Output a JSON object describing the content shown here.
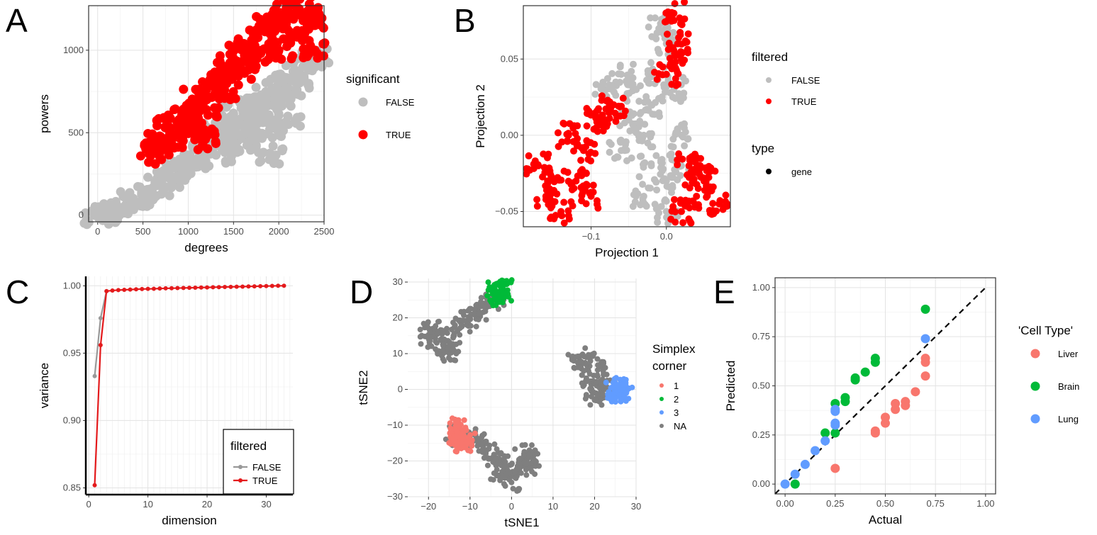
{
  "chart_data": [
    {
      "panel": "A",
      "type": "scatter",
      "xlabel": "degrees",
      "ylabel": "powers",
      "xlim": [
        -100,
        2500
      ],
      "ylim": [
        -40,
        1270
      ],
      "xticks": [
        "0",
        "500",
        "1000",
        "1500",
        "2000",
        "2500"
      ],
      "yticks": [
        "0",
        "500",
        "1000"
      ],
      "legend": {
        "title": "significant",
        "position": "right",
        "entries": [
          "FALSE",
          "TRUE"
        ]
      },
      "colors": {
        "FALSE": "#bebebe",
        "TRUE": "#ff0000"
      },
      "series": [
        {
          "name": "FALSE",
          "points": [
            [
              0,
              0
            ],
            [
              100,
              10
            ],
            [
              200,
              25
            ],
            [
              300,
              50
            ],
            [
              400,
              80
            ],
            [
              500,
              110
            ],
            [
              600,
              150
            ],
            [
              700,
              180
            ],
            [
              800,
              220
            ],
            [
              900,
              260
            ],
            [
              1000,
              300
            ],
            [
              1100,
              340
            ],
            [
              1200,
              380
            ],
            [
              1300,
              420
            ],
            [
              1400,
              480
            ],
            [
              1500,
              530
            ],
            [
              1600,
              570
            ],
            [
              1700,
              620
            ],
            [
              1800,
              660
            ],
            [
              1900,
              720
            ],
            [
              2000,
              760
            ],
            [
              2100,
              800
            ],
            [
              2200,
              860
            ],
            [
              2300,
              900
            ],
            [
              2400,
              960
            ],
            [
              1500,
              380
            ],
            [
              1700,
              440
            ],
            [
              1900,
              520
            ],
            [
              2100,
              600
            ],
            [
              1900,
              375
            ],
            [
              1300,
              560
            ],
            [
              1500,
              610
            ],
            [
              1700,
              660
            ],
            [
              2000,
              700
            ],
            [
              2200,
              760
            ]
          ]
        },
        {
          "name": "TRUE",
          "points": [
            [
              570,
              370
            ],
            [
              650,
              420
            ],
            [
              700,
              460
            ],
            [
              800,
              530
            ],
            [
              900,
              580
            ],
            [
              1000,
              640
            ],
            [
              1100,
              700
            ],
            [
              1200,
              760
            ],
            [
              1300,
              820
            ],
            [
              1400,
              880
            ],
            [
              1500,
              940
            ],
            [
              1600,
              1000
            ],
            [
              1700,
              1060
            ],
            [
              1800,
              1120
            ],
            [
              1900,
              1170
            ],
            [
              2000,
              1220
            ],
            [
              2100,
              1250
            ],
            [
              2200,
              1260
            ],
            [
              2300,
              1230
            ],
            [
              2400,
              1150
            ],
            [
              2400,
              1000
            ],
            [
              2200,
              1080
            ],
            [
              2000,
              1000
            ],
            [
              1800,
              980
            ],
            [
              1600,
              880
            ],
            [
              1400,
              760
            ],
            [
              1200,
              640
            ],
            [
              1000,
              520
            ],
            [
              800,
              470
            ],
            [
              1190,
              460
            ]
          ]
        }
      ]
    },
    {
      "panel": "B",
      "type": "scatter",
      "xlabel": "Projection 1",
      "ylabel": "Projection 2",
      "xlim": [
        -0.19,
        0.085
      ],
      "ylim": [
        -0.06,
        0.085
      ],
      "xticks": [
        "-0.1",
        "0.0"
      ],
      "yticks": [
        "0.05",
        "0.00",
        "-0.05"
      ],
      "legend": [
        {
          "title": "filtered",
          "entries": [
            "FALSE",
            "TRUE"
          ]
        },
        {
          "title": "type",
          "entries": [
            "gene"
          ]
        }
      ],
      "colors": {
        "FALSE": "#bebebe",
        "TRUE": "#ff0000"
      },
      "series": [
        {
          "name": "FALSE",
          "points": [
            [
              -0.03,
              0.0
            ],
            [
              -0.02,
              0.02
            ],
            [
              -0.01,
              0.04
            ],
            [
              0.0,
              0.06
            ],
            [
              0.01,
              0.03
            ],
            [
              0.02,
              0.0
            ],
            [
              0.02,
              -0.02
            ],
            [
              0.0,
              -0.03
            ],
            [
              -0.02,
              -0.02
            ],
            [
              -0.04,
              0.03
            ],
            [
              -0.05,
              0.01
            ],
            [
              -0.06,
              -0.01
            ],
            [
              -0.08,
              0.03
            ],
            [
              -0.06,
              0.04
            ],
            [
              -0.01,
              0.07
            ],
            [
              0.0,
              -0.05
            ],
            [
              -0.03,
              -0.04
            ]
          ]
        },
        {
          "name": "TRUE",
          "points": [
            [
              -0.17,
              -0.02
            ],
            [
              -0.15,
              -0.03
            ],
            [
              -0.13,
              0.0
            ],
            [
              -0.11,
              -0.01
            ],
            [
              -0.09,
              0.01
            ],
            [
              -0.07,
              0.02
            ],
            [
              -0.1,
              -0.04
            ],
            [
              -0.16,
              -0.04
            ],
            [
              -0.14,
              -0.05
            ],
            [
              -0.08,
              0.01
            ],
            [
              -0.12,
              -0.03
            ],
            [
              0.01,
              0.08
            ],
            [
              0.02,
              0.05
            ],
            [
              0.0,
              0.04
            ],
            [
              0.015,
              0.06
            ],
            [
              0.03,
              -0.02
            ],
            [
              0.04,
              -0.04
            ],
            [
              0.05,
              -0.03
            ],
            [
              0.02,
              -0.05
            ],
            [
              0.07,
              -0.045
            ],
            [
              0.045,
              -0.02
            ]
          ]
        }
      ]
    },
    {
      "panel": "C",
      "type": "line",
      "xlabel": "dimension",
      "ylabel": "variance",
      "xlim": [
        -0.5,
        34.5
      ],
      "ylim": [
        0.845,
        1.007
      ],
      "xticks": [
        "0",
        "10",
        "20",
        "30"
      ],
      "yticks": [
        "0.85",
        "0.90",
        "0.95",
        "1.00"
      ],
      "legend": {
        "title": "filtered",
        "position": "bottom-right",
        "entries": [
          "FALSE",
          "TRUE"
        ]
      },
      "colors": {
        "FALSE": "#999999",
        "TRUE": "#e41a1c"
      },
      "series": [
        {
          "name": "FALSE",
          "x": [
            1,
            2,
            3
          ],
          "values": [
            0.933,
            0.976,
            0.996
          ]
        },
        {
          "name": "TRUE",
          "x": [
            1,
            2,
            3,
            4,
            5,
            6,
            7,
            8,
            9,
            10,
            11,
            12,
            13,
            14,
            15,
            16,
            17,
            18,
            19,
            20,
            21,
            22,
            23,
            24,
            25,
            26,
            27,
            28,
            29,
            30,
            31,
            32,
            33
          ],
          "values": [
            0.852,
            0.956,
            0.996,
            0.9965,
            0.9968,
            0.997,
            0.9972,
            0.9974,
            0.9976,
            0.9977,
            0.9978,
            0.998,
            0.9981,
            0.9982,
            0.9983,
            0.9984,
            0.9985,
            0.9986,
            0.9987,
            0.9988,
            0.9989,
            0.999,
            0.9991,
            0.9992,
            0.9993,
            0.9994,
            0.9995,
            0.9996,
            0.9997,
            0.9998,
            0.9999,
            1.0,
            1.0
          ]
        }
      ]
    },
    {
      "panel": "D",
      "type": "scatter",
      "xlabel": "tSNE1",
      "ylabel": "tSNE2",
      "xlim": [
        -25,
        30
      ],
      "ylim": [
        -30,
        31
      ],
      "xticks": [
        "-20",
        "-10",
        "0",
        "10",
        "20",
        "30"
      ],
      "yticks": [
        "30",
        "20",
        "10",
        "0",
        "-10",
        "-20",
        "-30"
      ],
      "legend": {
        "title": "Simplex\ncorner",
        "position": "right",
        "entries": [
          "1",
          "2",
          "3",
          "NA"
        ]
      },
      "colors": {
        "1": "#f8766d",
        "2": "#00ba38",
        "3": "#619cff",
        "NA": "#7f7f7f"
      },
      "series": [
        {
          "name": "NA",
          "points": [
            [
              -20,
              15
            ],
            [
              -18,
              13
            ],
            [
              -16,
              12
            ],
            [
              -14,
              15
            ],
            [
              -12,
              18
            ],
            [
              -10,
              20
            ],
            [
              -8,
              22
            ],
            [
              -6,
              24
            ],
            [
              -4,
              25
            ],
            [
              -19,
              17
            ],
            [
              -15,
              10
            ],
            [
              -17,
              14
            ],
            [
              15,
              8
            ],
            [
              17,
              4
            ],
            [
              19,
              0
            ],
            [
              21,
              2
            ],
            [
              23,
              0
            ],
            [
              20,
              -3
            ],
            [
              18,
              9
            ],
            [
              22,
              6
            ],
            [
              -14,
              -12
            ],
            [
              -12,
              -14
            ],
            [
              -10,
              -13
            ],
            [
              -8,
              -15
            ],
            [
              -6,
              -17
            ],
            [
              -4,
              -19
            ],
            [
              -2,
              -20
            ],
            [
              0,
              -21
            ],
            [
              2,
              -23
            ],
            [
              4,
              -22
            ],
            [
              0,
              -26
            ],
            [
              -3,
              -24
            ],
            [
              5,
              -19
            ],
            [
              3,
              -18
            ]
          ]
        },
        {
          "name": "1",
          "points": [
            [
              -14,
              -13
            ],
            [
              -13,
              -14
            ],
            [
              -12,
              -12
            ],
            [
              -13,
              -10
            ],
            [
              -11,
              -14
            ],
            [
              -12,
              -15
            ]
          ]
        },
        {
          "name": "2",
          "points": [
            [
              -4,
              28
            ],
            [
              -3,
              27
            ],
            [
              -2,
              28
            ],
            [
              -3,
              26
            ],
            [
              -2,
              27
            ]
          ]
        },
        {
          "name": "3",
          "points": [
            [
              25,
              0
            ],
            [
              26,
              1
            ],
            [
              27,
              0
            ],
            [
              26,
              -1
            ],
            [
              25.5,
              -0.5
            ]
          ]
        }
      ]
    },
    {
      "panel": "E",
      "type": "scatter",
      "xlabel": "Actual",
      "ylabel": "Predicted",
      "xlim": [
        -0.05,
        1.05
      ],
      "ylim": [
        -0.05,
        1.05
      ],
      "xticks": [
        "0.00",
        "0.25",
        "0.50",
        "0.75",
        "1.00"
      ],
      "yticks": [
        "0.00",
        "0.25",
        "0.50",
        "0.75",
        "1.00"
      ],
      "reference_line": "y = x (dashed)",
      "legend": {
        "title": "'Cell Type'",
        "position": "right",
        "entries": [
          "Liver",
          "Brain",
          "Lung"
        ]
      },
      "colors": {
        "Liver": "#f8766d",
        "Brain": "#00ba38",
        "Lung": "#619cff"
      },
      "series": [
        {
          "name": "Liver",
          "points": [
            [
              0.25,
              0.08
            ],
            [
              0.45,
              0.27
            ],
            [
              0.45,
              0.26
            ],
            [
              0.5,
              0.31
            ],
            [
              0.5,
              0.34
            ],
            [
              0.55,
              0.38
            ],
            [
              0.55,
              0.41
            ],
            [
              0.6,
              0.4
            ],
            [
              0.6,
              0.42
            ],
            [
              0.65,
              0.47
            ],
            [
              0.7,
              0.55
            ],
            [
              0.7,
              0.62
            ],
            [
              0.7,
              0.64
            ]
          ]
        },
        {
          "name": "Brain",
          "points": [
            [
              0.05,
              0.0
            ],
            [
              0.2,
              0.26
            ],
            [
              0.25,
              0.41
            ],
            [
              0.25,
              0.26
            ],
            [
              0.3,
              0.42
            ],
            [
              0.3,
              0.44
            ],
            [
              0.35,
              0.53
            ],
            [
              0.35,
              0.54
            ],
            [
              0.4,
              0.57
            ],
            [
              0.45,
              0.62
            ],
            [
              0.45,
              0.64
            ],
            [
              0.7,
              0.89
            ]
          ]
        },
        {
          "name": "Lung",
          "points": [
            [
              0.0,
              0.0
            ],
            [
              0.05,
              0.05
            ],
            [
              0.1,
              0.1
            ],
            [
              0.15,
              0.17
            ],
            [
              0.2,
              0.22
            ],
            [
              0.25,
              0.3
            ],
            [
              0.25,
              0.31
            ],
            [
              0.25,
              0.37
            ],
            [
              0.25,
              0.38
            ],
            [
              0.7,
              0.74
            ]
          ]
        }
      ]
    }
  ]
}
